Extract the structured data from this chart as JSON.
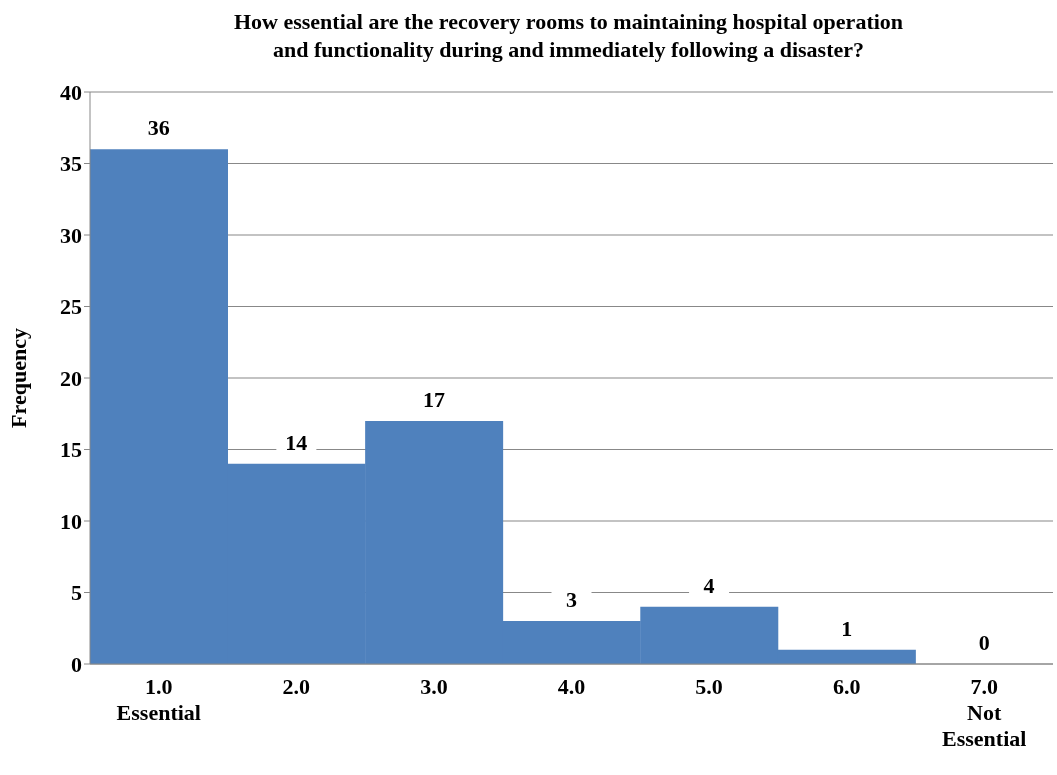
{
  "chart_data": {
    "type": "bar",
    "title": "How essential are the recovery rooms to maintaining hospital operation\nand functionality during and immediately following a disaster?",
    "ylabel": "Frequency",
    "categories": [
      "1.0\nEssential",
      "2.0",
      "3.0",
      "4.0",
      "5.0",
      "6.0",
      "7.0\nNot\nEssential"
    ],
    "values": [
      36,
      14,
      17,
      3,
      4,
      1,
      0
    ],
    "color": "#4f81bd",
    "ylim": [
      0,
      40
    ],
    "yticks": [
      0,
      5,
      10,
      15,
      20,
      25,
      30,
      35,
      40
    ],
    "grid": "y",
    "data_labels": true
  }
}
